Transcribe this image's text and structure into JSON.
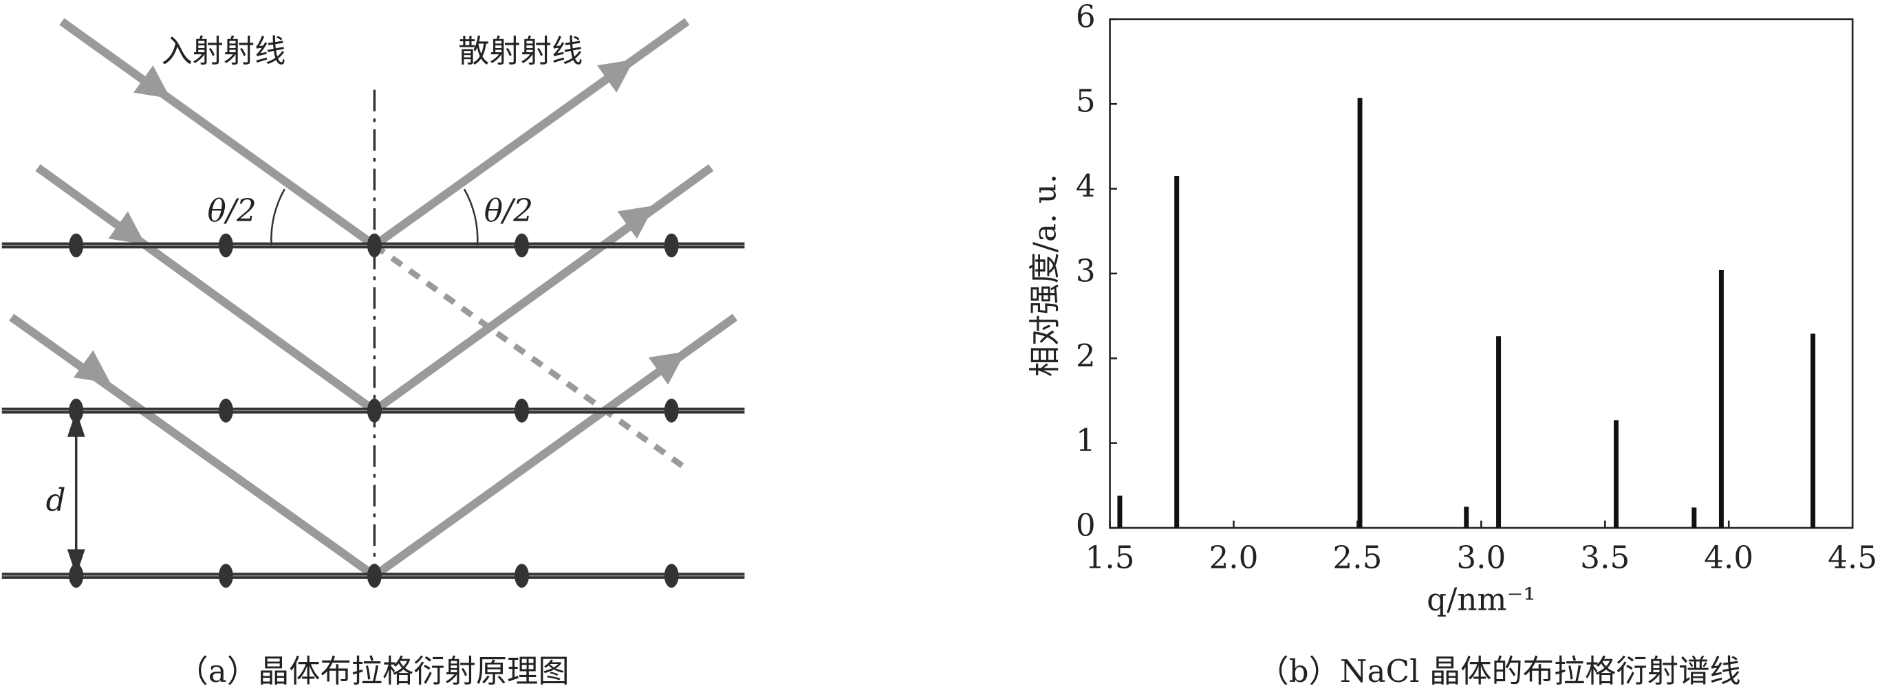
{
  "diagram": {
    "incident": "入射射线",
    "scattered": "散射射线",
    "angle_left": "θ/2",
    "angle_right": "θ/2",
    "spacing": "d",
    "caption": "（a）晶体布拉格衍射原理图"
  },
  "chart_data": {
    "type": "bar",
    "caption": "（b）NaCl 晶体的布拉格衍射谱线",
    "x_label": "q/nm⁻¹",
    "y_label": "相对强度/a. u.",
    "x": [
      1.54,
      1.77,
      2.51,
      2.94,
      3.07,
      3.545,
      3.86,
      3.97,
      4.34
    ],
    "values": [
      0.38,
      4.15,
      5.07,
      0.25,
      2.26,
      1.27,
      0.24,
      3.04,
      2.29
    ],
    "color": "#111111",
    "xlim": [
      1.5,
      4.5
    ],
    "xticks": [
      1.5,
      {
        "value": 2,
        "label": "2.0"
      },
      2.5,
      {
        "value": 3,
        "label": "3.0"
      },
      3.5,
      {
        "value": 4,
        "label": "4.0"
      },
      4.5
    ],
    "ylim": [
      0,
      6
    ],
    "yticks": [
      0,
      1,
      2,
      3,
      4,
      5,
      6
    ]
  }
}
